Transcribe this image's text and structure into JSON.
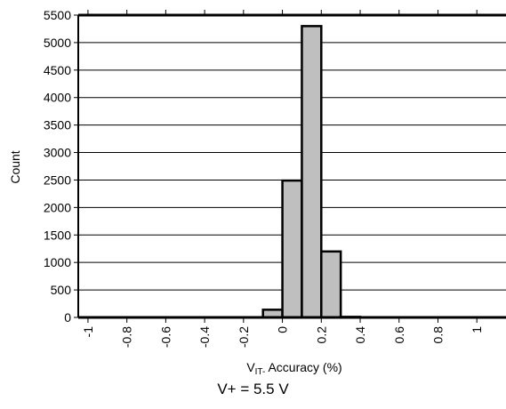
{
  "chart_data": {
    "type": "bar",
    "bins": [
      {
        "from": -1.0,
        "to": -0.9,
        "count": 0
      },
      {
        "from": -0.9,
        "to": -0.8,
        "count": 0
      },
      {
        "from": -0.8,
        "to": -0.7,
        "count": 0
      },
      {
        "from": -0.7,
        "to": -0.6,
        "count": 0
      },
      {
        "from": -0.6,
        "to": -0.5,
        "count": 0
      },
      {
        "from": -0.5,
        "to": -0.4,
        "count": 0
      },
      {
        "from": -0.4,
        "to": -0.3,
        "count": 0
      },
      {
        "from": -0.3,
        "to": -0.2,
        "count": 0
      },
      {
        "from": -0.2,
        "to": -0.1,
        "count": 0
      },
      {
        "from": -0.1,
        "to": 0.0,
        "count": 140
      },
      {
        "from": 0.0,
        "to": 0.1,
        "count": 2490
      },
      {
        "from": 0.1,
        "to": 0.2,
        "count": 5300
      },
      {
        "from": 0.2,
        "to": 0.3,
        "count": 1200
      },
      {
        "from": 0.3,
        "to": 0.4,
        "count": 10
      },
      {
        "from": 0.4,
        "to": 0.5,
        "count": 0
      },
      {
        "from": 0.5,
        "to": 0.6,
        "count": 0
      },
      {
        "from": 0.6,
        "to": 0.7,
        "count": 0
      },
      {
        "from": 0.7,
        "to": 0.8,
        "count": 0
      },
      {
        "from": 0.8,
        "to": 0.9,
        "count": 0
      },
      {
        "from": 0.9,
        "to": 1.0,
        "count": 0
      },
      {
        "from": 1.0,
        "to": 1.1,
        "count": 0
      }
    ],
    "xlim": [
      -1.05,
      1.15
    ],
    "ylim": [
      0,
      5500
    ],
    "x_ticks": [
      "-1",
      "-0.8",
      "-0.6",
      "-0.4",
      "-0.2",
      "0",
      "0.2",
      "0.4",
      "0.6",
      "0.8",
      "1"
    ],
    "x_tick_values": [
      -1,
      -0.8,
      -0.6,
      -0.4,
      -0.2,
      0,
      0.2,
      0.4,
      0.6,
      0.8,
      1
    ],
    "y_ticks": [
      0,
      500,
      1000,
      1500,
      2000,
      2500,
      3000,
      3500,
      4000,
      4500,
      5000,
      5500
    ],
    "ylabel": "Count",
    "xlabel_main": "V",
    "xlabel_sub": "IT-",
    "xlabel_rest": " Accuracy (%)",
    "caption": "V+ = 5.5 V",
    "grid": "horizontal",
    "bar_color": "#bfbfbf",
    "edge_color": "#000000"
  }
}
